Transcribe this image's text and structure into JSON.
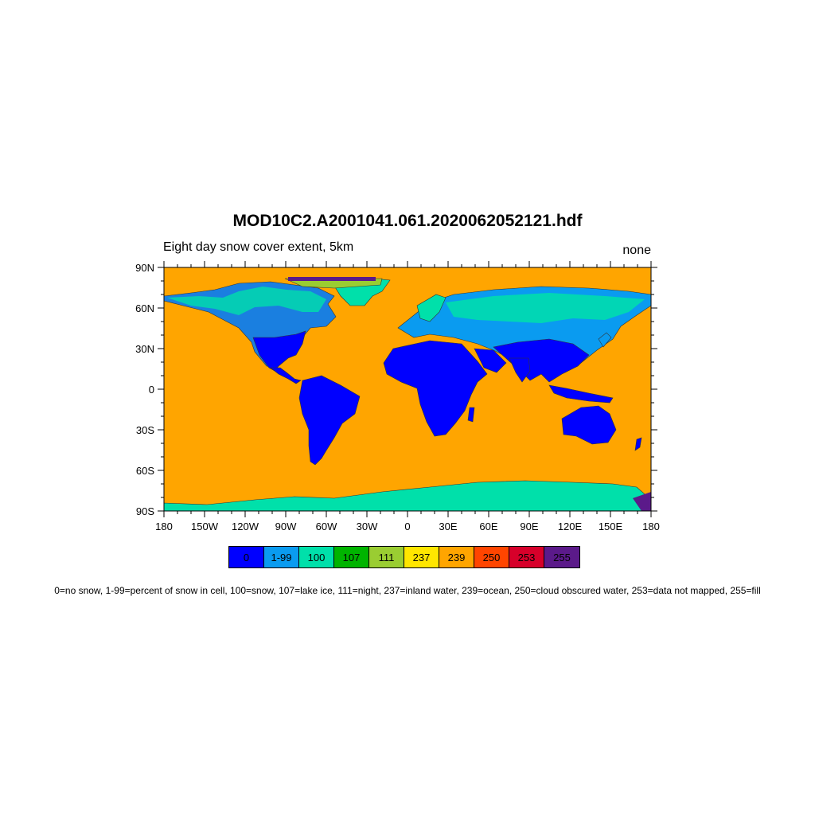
{
  "title": "MOD10C2.A2001041.061.2020062052121.hdf",
  "subtitle_left": "Eight day snow cover extent, 5km",
  "subtitle_right": "none",
  "map": {
    "ocean_color": "#FFA500",
    "no_snow_color": "#0000FF",
    "partial_snow_color": "#0A9BF0",
    "snow_color": "#00E0AA",
    "night_color": "#9ACD32",
    "fill_color": "#5B1A8A",
    "x_tick_labels": [
      "180",
      "150W",
      "120W",
      "90W",
      "60W",
      "30W",
      "0",
      "30E",
      "60E",
      "90E",
      "120E",
      "150E",
      "180"
    ],
    "y_tick_labels": [
      "90N",
      "60N",
      "30N",
      "0",
      "30S",
      "60S",
      "90S"
    ]
  },
  "legend": {
    "items": [
      {
        "label": "0",
        "color": "#0000FF"
      },
      {
        "label": "1-99",
        "color": "#0A9BF0"
      },
      {
        "label": "100",
        "color": "#00E0AA"
      },
      {
        "label": "107",
        "color": "#00B400"
      },
      {
        "label": "111",
        "color": "#9ACD32"
      },
      {
        "label": "237",
        "color": "#FFE600"
      },
      {
        "label": "239",
        "color": "#FFA500"
      },
      {
        "label": "250",
        "color": "#FF4500"
      },
      {
        "label": "253",
        "color": "#D7002A"
      },
      {
        "label": "255",
        "color": "#5B1A8A"
      }
    ]
  },
  "caption": "0=no snow, 1-99=percent of snow in cell, 100=snow, 107=lake ice, 111=night, 237=inland water, 239=ocean, 250=cloud obscured water, 253=data not mapped, 255=fill"
}
